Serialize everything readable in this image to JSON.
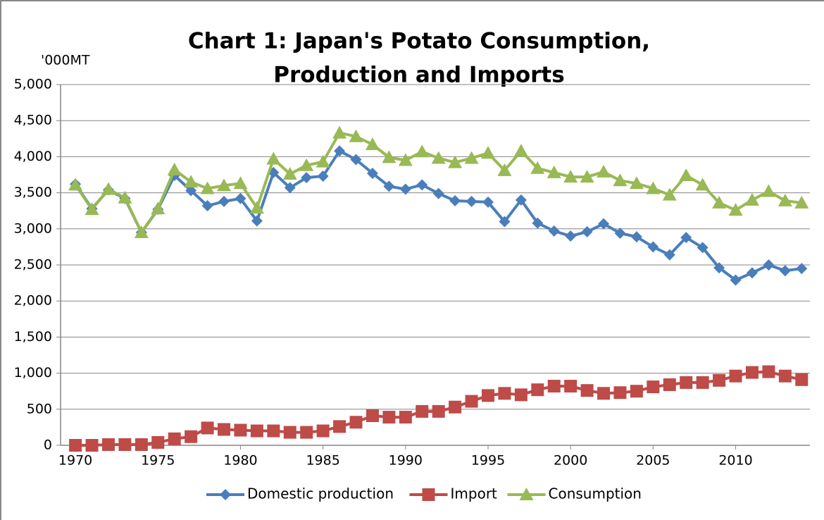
{
  "chart_data": {
    "type": "line",
    "title": [
      "Chart 1: Japan's Potato Consumption,",
      "Production and Imports"
    ],
    "y_label": "'000MT",
    "x": [
      1970,
      1971,
      1972,
      1973,
      1974,
      1975,
      1976,
      1977,
      1978,
      1979,
      1980,
      1981,
      1982,
      1983,
      1984,
      1985,
      1986,
      1987,
      1988,
      1989,
      1990,
      1991,
      1992,
      1993,
      1994,
      1995,
      1996,
      1997,
      1998,
      1999,
      2000,
      2001,
      2002,
      2003,
      2004,
      2005,
      2006,
      2007,
      2008,
      2009,
      2010,
      2011,
      2012,
      2013,
      2014
    ],
    "series": [
      {
        "name": "Domestic production",
        "color": "#4a7ebb",
        "marker": "diamond",
        "values": [
          3620,
          3280,
          3540,
          3420,
          2950,
          3270,
          3740,
          3530,
          3320,
          3380,
          3420,
          3110,
          3780,
          3570,
          3710,
          3730,
          4080,
          3960,
          3770,
          3590,
          3550,
          3610,
          3490,
          3390,
          3380,
          3370,
          3100,
          3400,
          3080,
          2970,
          2900,
          2960,
          3070,
          2940,
          2890,
          2750,
          2640,
          2880,
          2740,
          2460,
          2290,
          2390,
          2500,
          2420,
          2450
        ]
      },
      {
        "name": "Import",
        "color": "#be4b48",
        "marker": "square",
        "values": [
          0,
          0,
          10,
          10,
          10,
          40,
          90,
          120,
          240,
          220,
          210,
          200,
          200,
          180,
          180,
          200,
          260,
          320,
          410,
          390,
          390,
          470,
          470,
          530,
          610,
          690,
          720,
          700,
          770,
          820,
          820,
          760,
          720,
          730,
          750,
          810,
          840,
          870,
          870,
          900,
          960,
          1010,
          1020,
          960,
          910
        ]
      },
      {
        "name": "Consumption",
        "color": "#98b954",
        "marker": "triangle",
        "values": [
          3610,
          3270,
          3550,
          3430,
          2950,
          3280,
          3820,
          3650,
          3560,
          3600,
          3630,
          3290,
          3970,
          3760,
          3880,
          3930,
          4330,
          4280,
          4170,
          3990,
          3950,
          4070,
          3980,
          3920,
          3980,
          4050,
          3810,
          4080,
          3840,
          3780,
          3720,
          3720,
          3790,
          3670,
          3630,
          3560,
          3470,
          3740,
          3610,
          3360,
          3260,
          3400,
          3520,
          3390,
          3360
        ]
      }
    ],
    "xlim": [
      1969.1,
      2014.5
    ],
    "xticks": [
      1970,
      1975,
      1980,
      1985,
      1990,
      1995,
      2000,
      2005,
      2010
    ],
    "ylim": [
      0,
      5000
    ],
    "yticks": [
      0,
      500,
      {
        "value": 1000,
        "label": "1,000"
      },
      {
        "value": 1500,
        "label": "1,500"
      },
      {
        "value": 2000,
        "label": "2,000"
      },
      {
        "value": 2500,
        "label": "2,500"
      },
      {
        "value": 3000,
        "label": "3,000"
      },
      {
        "value": 3500,
        "label": "3,500"
      },
      {
        "value": 4000,
        "label": "4,000"
      },
      {
        "value": 4500,
        "label": "4,500"
      },
      {
        "value": 5000,
        "label": "5,000"
      }
    ],
    "grid": true,
    "legend": "bottom"
  }
}
